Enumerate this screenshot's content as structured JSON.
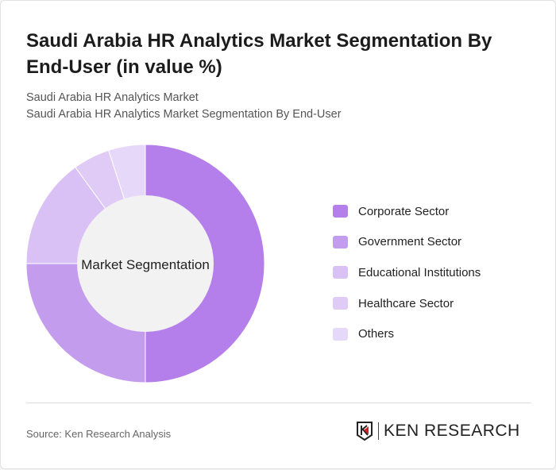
{
  "title": "Saudi Arabia HR Analytics Market Segmentation By End-User (in value %)",
  "subtitle1": "Saudi Arabia HR Analytics Market",
  "subtitle2": "Saudi Arabia HR Analytics Market Segmentation By End-User",
  "source": "Source: Ken Research Analysis",
  "logo_text": "KEN RESEARCH",
  "chart_data": {
    "type": "pie",
    "variant": "donut",
    "center_label": "Market Segmentation",
    "categories": [
      "Corporate Sector",
      "Government Sector",
      "Educational Institutions",
      "Healthcare Sector",
      "Others"
    ],
    "values": [
      50,
      25,
      15,
      5,
      5
    ],
    "colors": [
      "#B57FEB",
      "#C49CEE",
      "#D9C0F5",
      "#DFCBF6",
      "#E6D8F8"
    ],
    "legend_position": "right"
  }
}
